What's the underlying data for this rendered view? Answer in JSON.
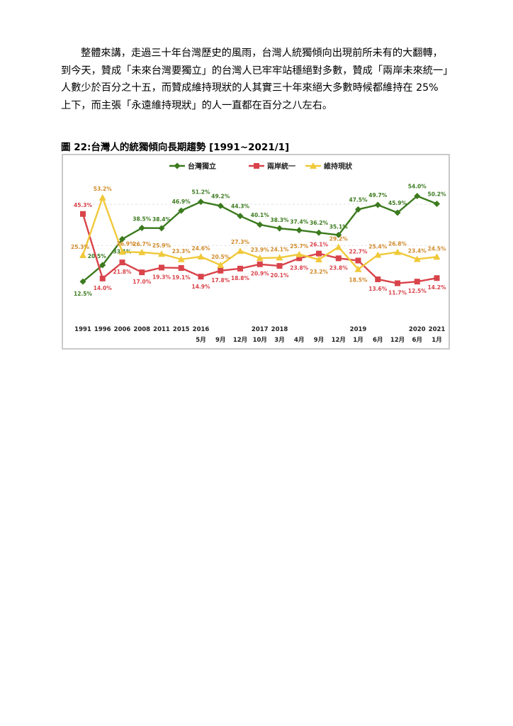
{
  "paragraph": {
    "lines": [
      "整體來講，走過三十年台灣歷史的風雨，台灣人統獨傾向出現前所未有的大翻轉，",
      "到今天，贊成「未來台灣要獨立」的台灣人已牢牢站穩絕對多數，贊成「兩岸未來統一」",
      "人數少於百分之十五，而贊成維持現狀的人其實三十年來絕大多數時候都維持在 25%",
      "上下，而主張「永遠維持現狀」的人一直都在百分之八左右。"
    ]
  },
  "figure_title": "圖 22:台灣人的統獨傾向長期趨勢  [1991~2021/1]",
  "colors": {
    "independence": "#3b7a1e",
    "unification": "#d9434a",
    "status_quo": "#f0c93a",
    "status_quo_label": "#d08a2a",
    "frame": "#c9c9c9",
    "gridline": "#e3e3e3"
  },
  "chart_data": {
    "type": "line",
    "title": "",
    "xlabel": "",
    "ylabel": "",
    "ylim": [
      5,
      60
    ],
    "grid": true,
    "legend_position": "top",
    "x_top": [
      "1991",
      "1996",
      "2006",
      "2008",
      "2011",
      "2015",
      "2016",
      "",
      "",
      "2017",
      "2018",
      "",
      "",
      "",
      "2019",
      "",
      "",
      "2020",
      "2021"
    ],
    "x_bottom": [
      "",
      "",
      "",
      "",
      "",
      "",
      "5月",
      "9月",
      "12月",
      "10月",
      "3月",
      "4月",
      "9月",
      "12月",
      "1月",
      "6月",
      "12月",
      "6月",
      "1月"
    ],
    "series": [
      {
        "name": "台灣獨立",
        "color_key": "independence",
        "marker": "diamond",
        "values": [
          12.5,
          20.5,
          33.1,
          38.5,
          38.4,
          46.9,
          51.2,
          49.2,
          44.3,
          40.1,
          38.3,
          37.4,
          36.2,
          35.1,
          47.5,
          49.7,
          45.9,
          54.0,
          50.2
        ]
      },
      {
        "name": "兩岸統一",
        "color_key": "unification",
        "marker": "square",
        "values": [
          45.3,
          14.0,
          21.8,
          17.0,
          19.3,
          19.1,
          14.9,
          17.8,
          18.8,
          20.9,
          20.1,
          23.8,
          26.1,
          23.8,
          22.7,
          13.6,
          11.7,
          12.5,
          14.2
        ]
      },
      {
        "name": "維持現狀",
        "color_key": "status_quo",
        "marker": "triangle",
        "values": [
          25.3,
          53.2,
          26.9,
          26.7,
          25.9,
          23.3,
          24.6,
          20.5,
          27.3,
          23.9,
          24.1,
          25.7,
          23.2,
          29.2,
          18.5,
          25.4,
          26.8,
          23.4,
          24.5
        ]
      }
    ]
  }
}
